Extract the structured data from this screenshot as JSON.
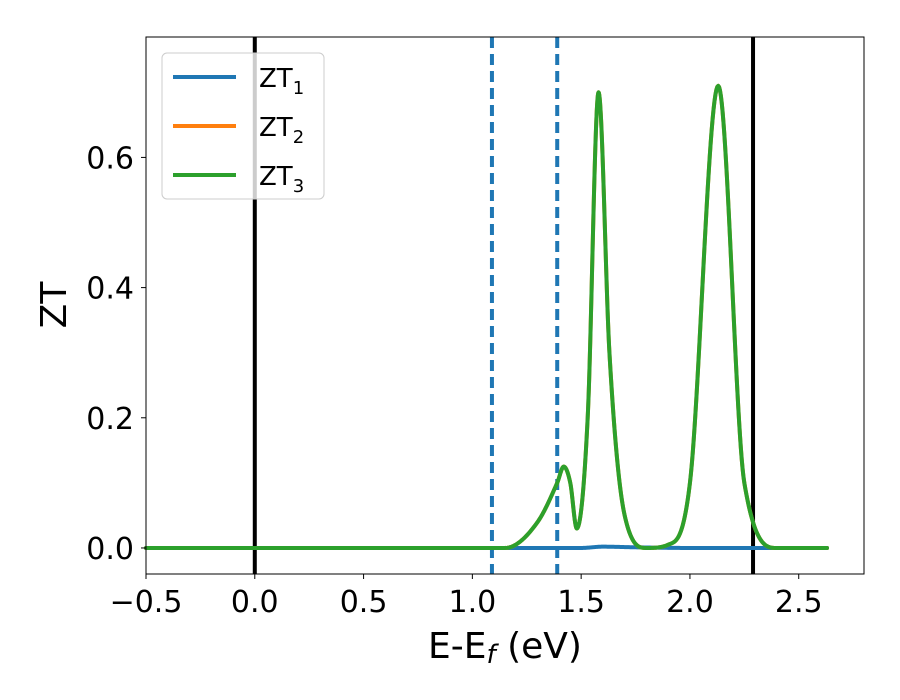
{
  "chart_data": {
    "type": "line",
    "xlabel": "E-E_f (eV)",
    "ylabel": "ZT",
    "xlim": [
      -0.5,
      2.8
    ],
    "ylim": [
      -0.04,
      0.785
    ],
    "xticks": [
      -0.5,
      0.0,
      0.5,
      1.0,
      1.5,
      2.0,
      2.5
    ],
    "xtick_labels": [
      "−0.5",
      "0.0",
      "0.5",
      "1.0",
      "1.5",
      "2.0",
      "2.5"
    ],
    "yticks": [
      0.0,
      0.2,
      0.4,
      0.6
    ],
    "ytick_labels": [
      "0.0",
      "0.2",
      "0.4",
      "0.6"
    ],
    "grid": false,
    "legend_position": "top-left",
    "x_range": [
      -0.5,
      2.63
    ],
    "series": [
      {
        "name": "ZT1",
        "name_main": "ZT",
        "name_sub": "1",
        "color": "#1f77b4",
        "points": [
          [
            -0.5,
            0.0
          ],
          [
            1.5,
            0.0
          ],
          [
            1.6,
            0.002
          ],
          [
            1.75,
            0.001
          ],
          [
            2.0,
            0.0
          ],
          [
            2.63,
            0.0
          ]
        ]
      },
      {
        "name": "ZT2",
        "name_main": "ZT",
        "name_sub": "2",
        "color": "#ff7f0e",
        "points": [
          [
            -0.5,
            0.0
          ],
          [
            1.15,
            0.0
          ],
          [
            1.3,
            0.04
          ],
          [
            1.39,
            0.1
          ],
          [
            1.42,
            0.125
          ],
          [
            1.45,
            0.1
          ],
          [
            1.48,
            0.03
          ],
          [
            1.53,
            0.2
          ],
          [
            1.58,
            0.7
          ],
          [
            1.63,
            0.3
          ],
          [
            1.7,
            0.05
          ],
          [
            1.8,
            0.0
          ],
          [
            1.9,
            0.005
          ],
          [
            2.0,
            0.1
          ],
          [
            2.13,
            0.71
          ],
          [
            2.25,
            0.1
          ],
          [
            2.4,
            0.0
          ],
          [
            2.63,
            0.0
          ]
        ]
      },
      {
        "name": "ZT3",
        "name_main": "ZT",
        "name_sub": "3",
        "color": "#2ca02c",
        "points": [
          [
            -0.5,
            0.0
          ],
          [
            1.15,
            0.0
          ],
          [
            1.3,
            0.04
          ],
          [
            1.39,
            0.1
          ],
          [
            1.42,
            0.125
          ],
          [
            1.45,
            0.1
          ],
          [
            1.48,
            0.03
          ],
          [
            1.53,
            0.2
          ],
          [
            1.58,
            0.7
          ],
          [
            1.63,
            0.3
          ],
          [
            1.7,
            0.05
          ],
          [
            1.8,
            0.0
          ],
          [
            1.9,
            0.005
          ],
          [
            2.0,
            0.1
          ],
          [
            2.13,
            0.71
          ],
          [
            2.25,
            0.1
          ],
          [
            2.4,
            0.0
          ],
          [
            2.63,
            0.0
          ]
        ]
      }
    ],
    "vertical_lines": [
      {
        "x": 0.0,
        "style": "solid",
        "color": "#000000"
      },
      {
        "x": 2.29,
        "style": "solid",
        "color": "#000000"
      },
      {
        "x": 1.09,
        "style": "dashed",
        "color": "#1f77b4"
      },
      {
        "x": 1.39,
        "style": "dashed",
        "color": "#1f77b4"
      }
    ]
  }
}
